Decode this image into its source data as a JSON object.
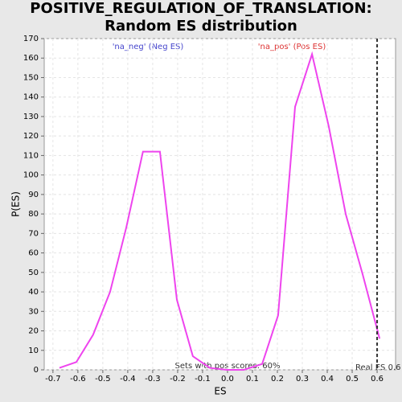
{
  "chart_data": {
    "type": "line",
    "title": "POSITIVE_REGULATION_OF_TRANSLATION: Random ES distribution",
    "xlabel": "ES",
    "ylabel": "P(ES)",
    "x": [
      -0.674,
      -0.606,
      -0.539,
      -0.471,
      -0.406,
      -0.339,
      -0.271,
      -0.203,
      -0.139,
      -0.071,
      -0.003,
      0.065,
      0.139,
      0.203,
      0.271,
      0.339,
      0.406,
      0.474,
      0.542,
      0.61
    ],
    "series": [
      {
        "name": "P(ES)",
        "color": "#ee44ee",
        "values": [
          1,
          4,
          18,
          40,
          73,
          112,
          112,
          36,
          7,
          1,
          0,
          0,
          3,
          28,
          135,
          162,
          125,
          80,
          49,
          16
        ]
      }
    ],
    "xlim": [
      -0.735,
      0.674
    ],
    "ylim": [
      0,
      170
    ],
    "xticks": [
      -0.7,
      -0.6,
      -0.5,
      -0.4,
      -0.3,
      -0.2,
      -0.1,
      {
        "value": 0,
        "label": "0.0"
      },
      0.1,
      0.2,
      0.3,
      0.4,
      0.5,
      0.6
    ],
    "yticks": [
      0,
      10,
      20,
      30,
      40,
      50,
      60,
      70,
      80,
      90,
      100,
      110,
      120,
      130,
      140,
      150,
      160,
      170
    ],
    "grid": true,
    "annotations": {
      "neg": "'na_neg' (Neg ES)",
      "pos": "'na_pos' (Pos ES)",
      "pos_scores": "Sets with pos scores: 60%",
      "real_es": "Real ES 0.6"
    },
    "real_es_line": 0.6
  }
}
